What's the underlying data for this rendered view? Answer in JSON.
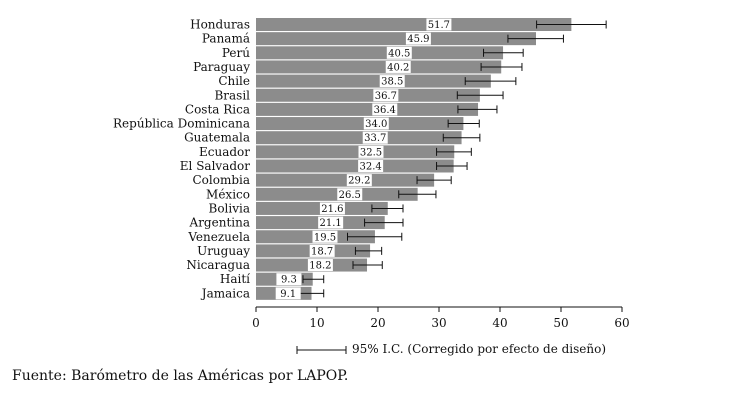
{
  "chart_data": {
    "type": "bar",
    "orientation": "horizontal",
    "categories": [
      "Honduras",
      "Panamá",
      "Perú",
      "Paraguay",
      "Chile",
      "Brasil",
      "Costa Rica",
      "República Dominicana",
      "Guatemala",
      "Ecuador",
      "El Salvador",
      "Colombia",
      "México",
      "Bolivia",
      "Argentina",
      "Venezuela",
      "Uruguay",
      "Nicaragua",
      "Haití",
      "Jamaica"
    ],
    "values": [
      51.7,
      45.9,
      40.5,
      40.2,
      38.5,
      36.7,
      36.4,
      34.0,
      33.7,
      32.5,
      32.4,
      29.2,
      26.5,
      21.6,
      21.1,
      19.5,
      18.7,
      18.2,
      9.3,
      9.1
    ],
    "value_labels": [
      "51.7",
      "45.9",
      "40.5",
      "40.2",
      "38.5",
      "36.7",
      "36.4",
      "34.0",
      "33.7",
      "32.5",
      "32.4",
      "29.2",
      "26.5",
      "21.6",
      "21.1",
      "19.5",
      "18.7",
      "18.2",
      "9.3",
      "9.1"
    ],
    "ci_low": [
      46.0,
      41.3,
      37.3,
      36.9,
      34.3,
      33.0,
      33.1,
      31.5,
      30.7,
      29.6,
      29.6,
      26.4,
      23.4,
      19.0,
      17.8,
      15.0,
      16.3,
      15.9,
      7.7,
      7.2
    ],
    "ci_high": [
      57.4,
      50.4,
      43.8,
      43.6,
      42.6,
      40.5,
      39.5,
      36.6,
      36.7,
      35.3,
      34.6,
      32.0,
      29.5,
      24.1,
      24.1,
      23.9,
      20.6,
      20.7,
      11.1,
      11.1
    ],
    "xlim": [
      0,
      60
    ],
    "xticks": [
      "0",
      "10",
      "20",
      "30",
      "40",
      "50",
      "60"
    ],
    "bar_color": "#8c8c8c",
    "legend": {
      "label": "95% I.C. (Corregido por efecto de diseño)",
      "placement": "bottom"
    },
    "source": "Fuente: Barómetro de las Américas por LAPOP."
  }
}
